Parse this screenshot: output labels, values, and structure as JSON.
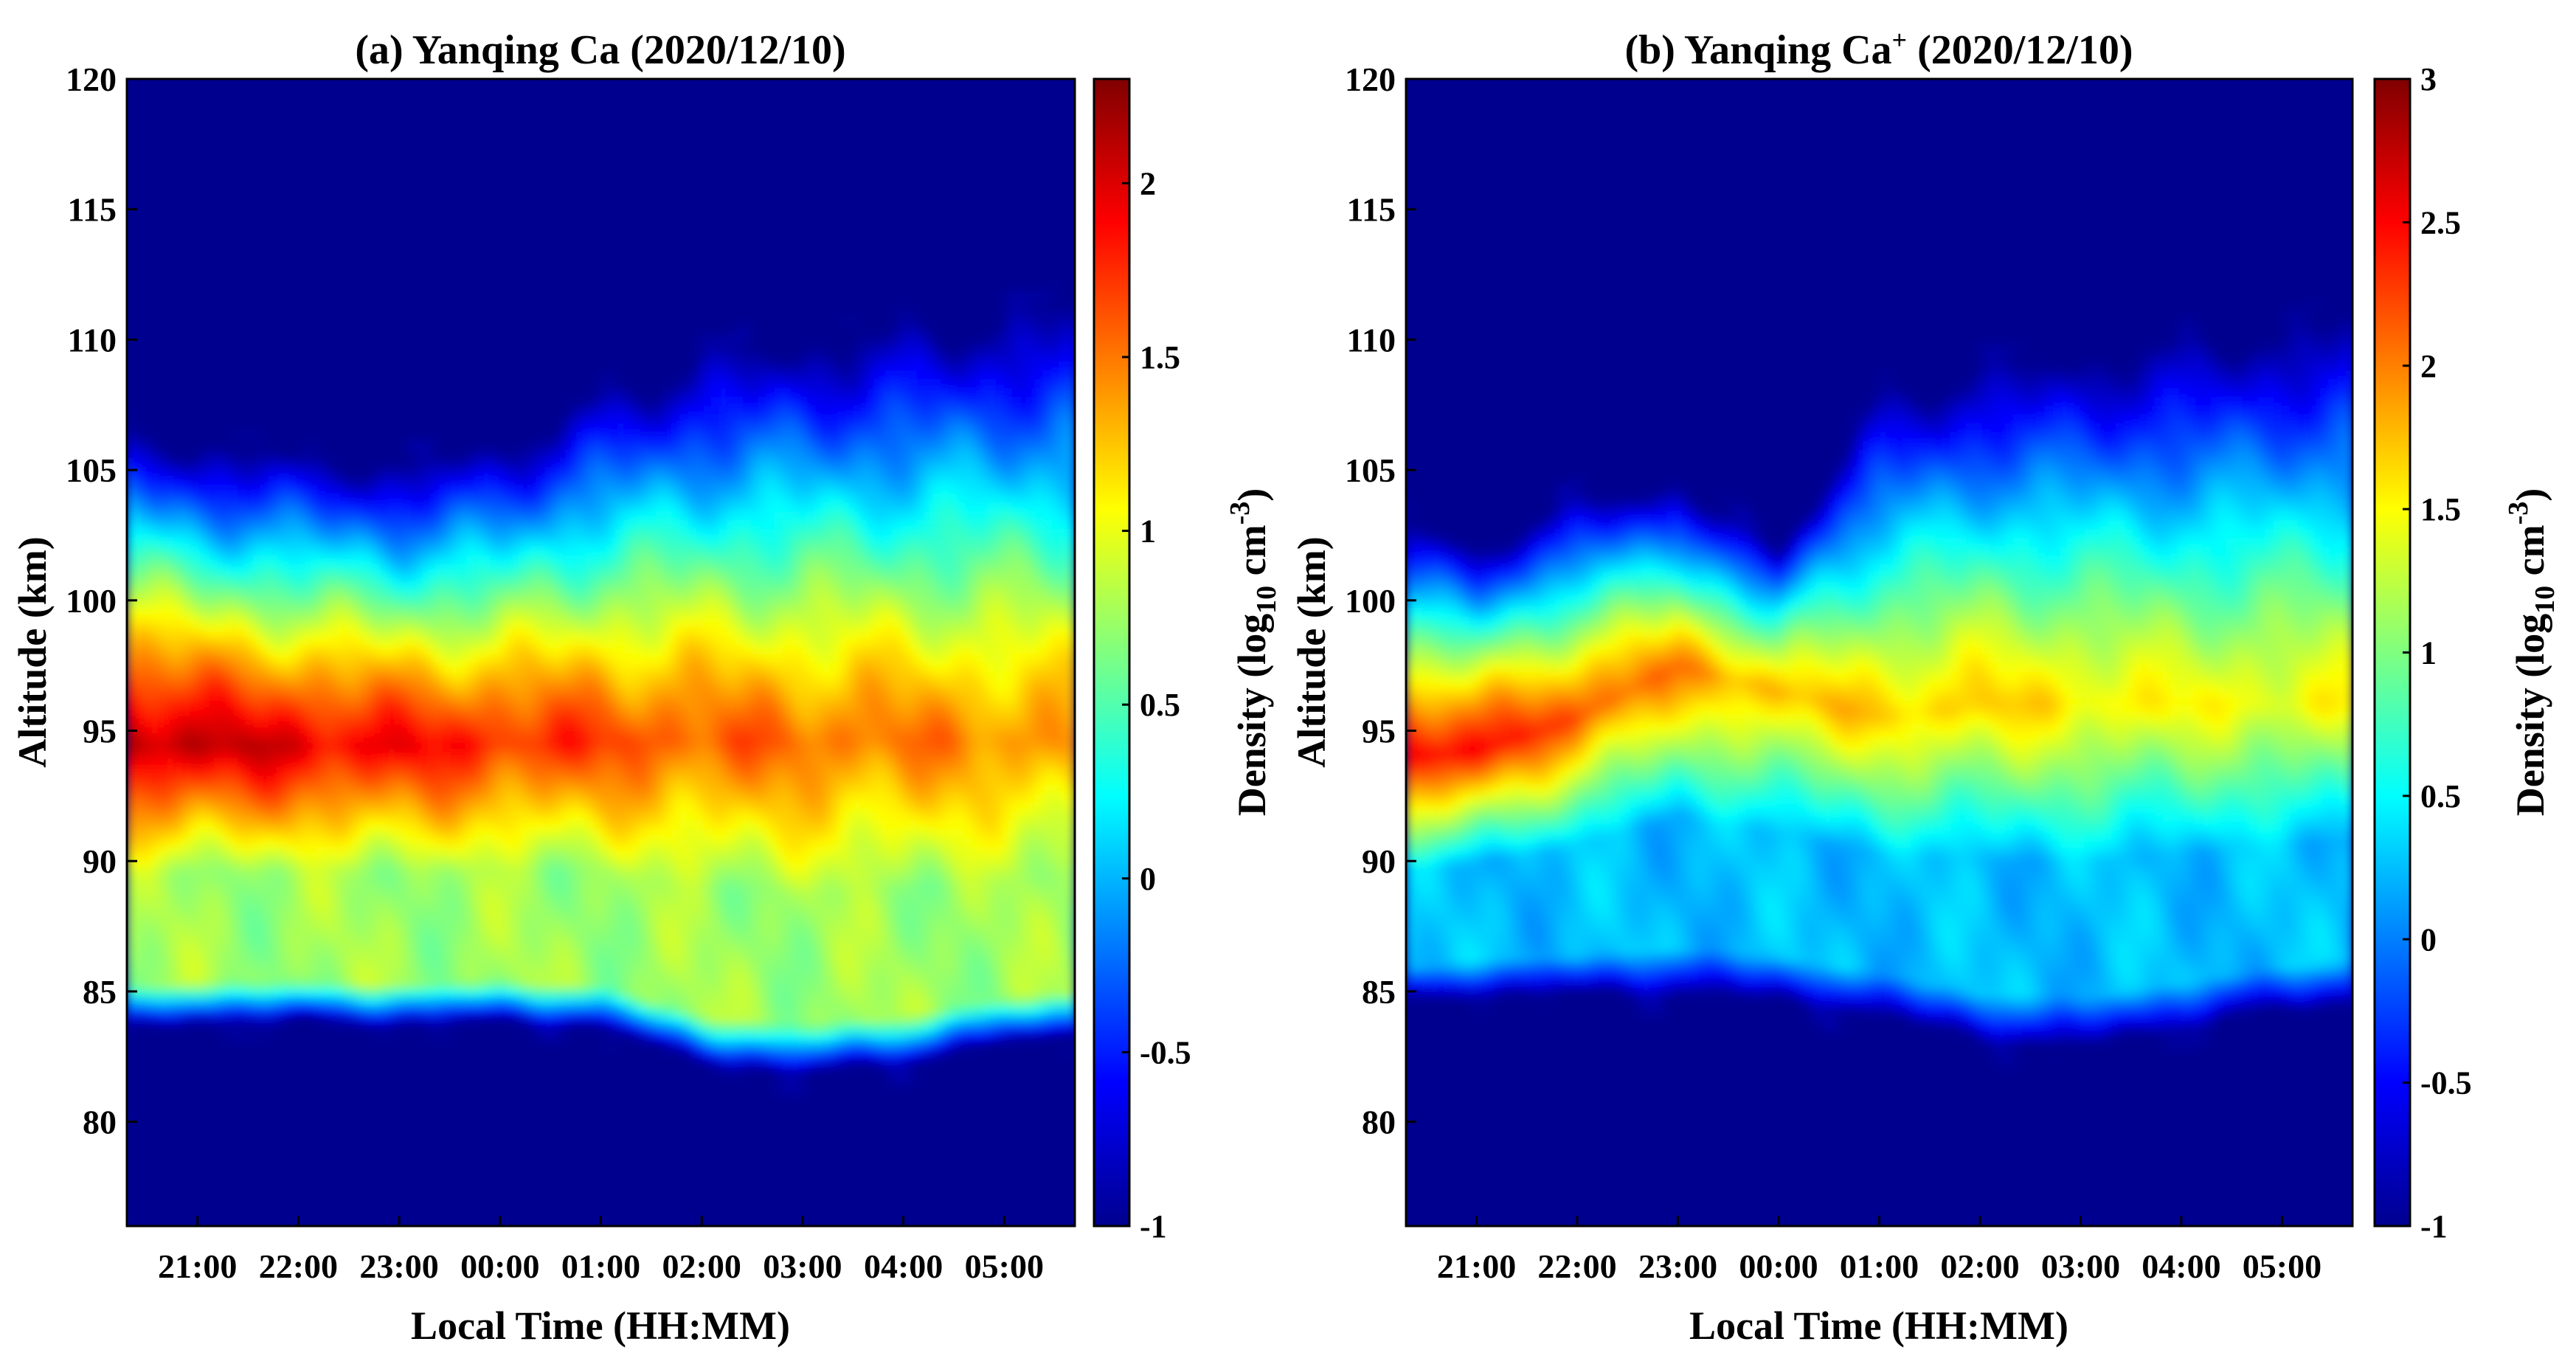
{
  "panels": [
    {
      "title": "(a) Yanqing Ca (2020/12/10)",
      "title_main": "(a) Yanqing Ca",
      "title_sup": "",
      "title_tail": " (2020/12/10)",
      "xlabel": "Local Time (HH:MM)",
      "ylabel": "Altitude (km)",
      "colorbar_label": "Density (log10 cm-3)",
      "colorbar_label_parts": {
        "a": "Density (log",
        "sub": "10",
        "b": " cm",
        "sup": "-3",
        "c": ")"
      },
      "ylim": [
        76,
        120
      ],
      "yticks": [
        "80",
        "85",
        "90",
        "95",
        "100",
        "105",
        "110",
        "115",
        "120"
      ],
      "xticks": [
        "21:00",
        "22:00",
        "23:00",
        "00:00",
        "01:00",
        "02:00",
        "03:00",
        "04:00",
        "05:00"
      ],
      "clim": [
        -1,
        2.3
      ],
      "cticks": [
        "-1",
        "-0.5",
        "0",
        "0.5",
        "1",
        "1.5",
        "2"
      ]
    },
    {
      "title": "(b) Yanqing Ca+ (2020/12/10)",
      "title_main": "(b) Yanqing Ca",
      "title_sup": "+",
      "title_tail": " (2020/12/10)",
      "xlabel": "Local Time (HH:MM)",
      "ylabel": "Altitude (km)",
      "colorbar_label": "Density (log10 cm-3)",
      "colorbar_label_parts": {
        "a": "Density (log",
        "sub": "10",
        "b": " cm",
        "sup": "-3",
        "c": ")"
      },
      "ylim": [
        76,
        120
      ],
      "yticks": [
        "80",
        "85",
        "90",
        "95",
        "100",
        "105",
        "110",
        "115",
        "120"
      ],
      "xticks": [
        "21:00",
        "22:00",
        "23:00",
        "00:00",
        "01:00",
        "02:00",
        "03:00",
        "04:00",
        "05:00"
      ],
      "clim": [
        -1,
        3
      ],
      "cticks": [
        "-1",
        "-0.5",
        "0",
        "0.5",
        "1",
        "1.5",
        "2",
        "2.5",
        "3"
      ]
    }
  ],
  "chart_data": [
    {
      "type": "heatmap",
      "title": "(a) Yanqing Ca (2020/12/10)",
      "xlabel": "Local Time (HH:MM)",
      "ylabel": "Altitude (km)",
      "colorbar_label": "Density (log10 cm-3)",
      "colormap": "jet",
      "x_hours": [
        20.3,
        21,
        22,
        23,
        24,
        25,
        26,
        27,
        28,
        29,
        29.7
      ],
      "ylim": [
        76,
        120
      ],
      "clim": [
        -1,
        2.3
      ],
      "layers": [
        {
          "name": "bottom_edge_km",
          "values": [
            83.5,
            83.8,
            83.8,
            83.7,
            83.8,
            83.6,
            82.2,
            81.8,
            82.2,
            83.0,
            83.3
          ]
        },
        {
          "name": "layer_center_km",
          "values": [
            94.5,
            94.4,
            94.4,
            94.4,
            94.5,
            94.6,
            94.6,
            94.6,
            94.6,
            94.6,
            94.6
          ]
        },
        {
          "name": "top_edge_km",
          "values": [
            106.6,
            106.0,
            105.6,
            105.3,
            106.0,
            108.0,
            109.5,
            110.0,
            110.5,
            111.0,
            111.5
          ]
        },
        {
          "name": "peak_log_density",
          "values": [
            2.2,
            2.1,
            2.0,
            1.9,
            1.8,
            1.7,
            1.6,
            1.55,
            1.5,
            1.45,
            1.4
          ]
        }
      ],
      "background_value": -1
    },
    {
      "type": "heatmap",
      "title": "(b) Yanqing Ca+ (2020/12/10)",
      "xlabel": "Local Time (HH:MM)",
      "ylabel": "Altitude (km)",
      "colorbar_label": "Density (log10 cm-3)",
      "colormap": "jet",
      "x_hours": [
        20.3,
        21,
        22,
        23,
        24,
        25,
        26,
        27,
        28,
        29,
        29.7
      ],
      "ylim": [
        76,
        120
      ],
      "clim": [
        -1,
        3
      ],
      "layers": [
        {
          "name": "bottom_edge_km",
          "values": [
            84.5,
            84.8,
            84.8,
            84.8,
            84.6,
            84.0,
            83.0,
            82.8,
            83.5,
            84.2,
            84.5
          ]
        },
        {
          "name": "layer_center_km",
          "values": [
            94.0,
            94.2,
            95.5,
            97.5,
            96.5,
            95.5,
            96.0,
            96.0,
            96.0,
            96.0,
            96.0
          ]
        },
        {
          "name": "top_edge_km",
          "values": [
            103.0,
            102.0,
            104.0,
            104.5,
            102.0,
            108.0,
            109.0,
            109.5,
            110.0,
            110.5,
            111.0
          ]
        },
        {
          "name": "peak_log_density",
          "values": [
            2.6,
            2.5,
            2.2,
            2.0,
            1.8,
            1.7,
            1.7,
            1.6,
            1.5,
            1.5,
            1.5
          ]
        }
      ],
      "background_value": -1
    }
  ]
}
